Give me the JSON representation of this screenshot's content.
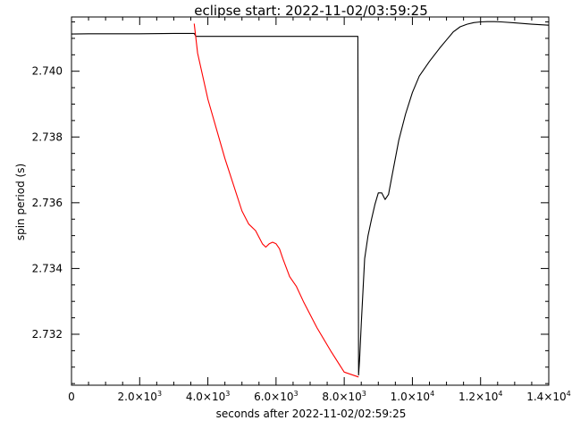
{
  "chart_data": {
    "type": "line",
    "title": "eclipse start: 2022-11-02/03:59:25",
    "xlabel": "seconds after 2022-11-02/02:59:25",
    "ylabel": "spin period (s)",
    "xlim": [
      0,
      14000
    ],
    "ylim": [
      2.73045,
      2.74165
    ],
    "grid": false,
    "x_ticks": [
      {
        "value": 0,
        "label": "0",
        "exp": ""
      },
      {
        "value": 2000,
        "label": "2.0×10",
        "exp": "3"
      },
      {
        "value": 4000,
        "label": "4.0×10",
        "exp": "3"
      },
      {
        "value": 6000,
        "label": "6.0×10",
        "exp": "3"
      },
      {
        "value": 8000,
        "label": "8.0×10",
        "exp": "3"
      },
      {
        "value": 10000,
        "label": "1.0×10",
        "exp": "4"
      },
      {
        "value": 12000,
        "label": "1.2×10",
        "exp": "4"
      },
      {
        "value": 14000,
        "label": "1.4×10",
        "exp": "4"
      }
    ],
    "y_ticks": [
      {
        "value": 2.732,
        "label": "2.732"
      },
      {
        "value": 2.734,
        "label": "2.734"
      },
      {
        "value": 2.736,
        "label": "2.736"
      },
      {
        "value": 2.738,
        "label": "2.738"
      },
      {
        "value": 2.74,
        "label": "2.740"
      }
    ],
    "series": [
      {
        "color": "#000000",
        "x": [
          0,
          500,
          1000,
          2000,
          3000,
          3600,
          3650,
          8400,
          8420,
          8450,
          8500,
          8550,
          8600,
          8700,
          8800,
          8900,
          9000,
          9100,
          9200,
          9300,
          9400,
          9600,
          9800,
          10000,
          10200,
          10500,
          10800,
          11000,
          11200,
          11400,
          11600,
          11800,
          12000,
          12200,
          12400,
          12600,
          13000,
          13500,
          14000
        ],
        "y": [
          2.74113,
          2.74114,
          2.74114,
          2.74114,
          2.74115,
          2.74115,
          2.74106,
          2.74106,
          2.73076,
          2.7312,
          2.7323,
          2.7333,
          2.7343,
          2.735,
          2.7355,
          2.73595,
          2.7363,
          2.7363,
          2.7361,
          2.73625,
          2.7368,
          2.7379,
          2.7387,
          2.73935,
          2.73985,
          2.7403,
          2.7407,
          2.74095,
          2.7412,
          2.74135,
          2.74143,
          2.74148,
          2.7415,
          2.74151,
          2.74151,
          2.7415,
          2.74147,
          2.74143,
          2.7414
        ]
      },
      {
        "color": "#ff0000",
        "x": [
          3600,
          3650,
          3700,
          4000,
          4500,
          5000,
          5200,
          5400,
          5600,
          5700,
          5800,
          5900,
          6000,
          6100,
          6200,
          6400,
          6600,
          6800,
          7200,
          7600,
          8000,
          8420
        ],
        "y": [
          2.74145,
          2.741,
          2.74055,
          2.73915,
          2.73735,
          2.73575,
          2.73535,
          2.73515,
          2.73475,
          2.73465,
          2.73475,
          2.7348,
          2.73475,
          2.7346,
          2.7343,
          2.73375,
          2.73345,
          2.733,
          2.7322,
          2.7315,
          2.73085,
          2.7307
        ]
      }
    ]
  }
}
